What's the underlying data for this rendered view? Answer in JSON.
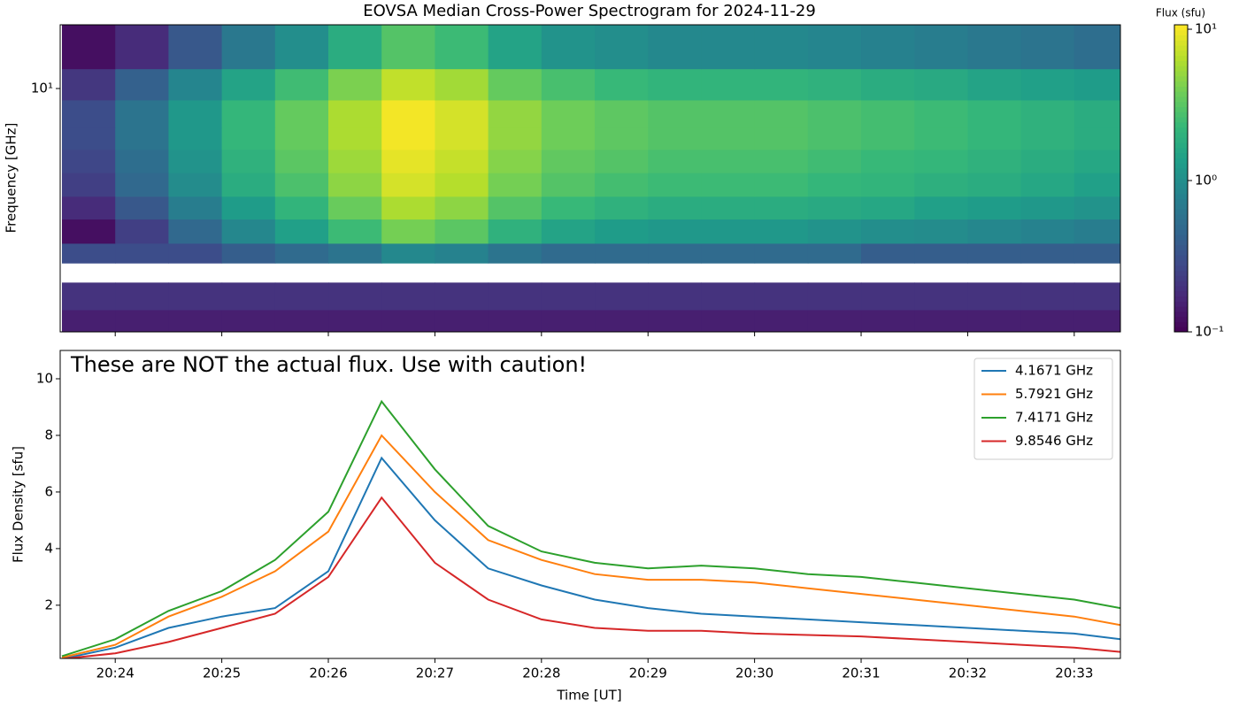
{
  "chart_data": [
    {
      "type": "heatmap",
      "title": "EOVSA Median Cross-Power Spectrogram for 2024-11-29",
      "ylabel": "Frequency [GHz]",
      "yscale": "log",
      "colormap": "viridis",
      "x": [
        "20:23:30",
        "20:24:00",
        "20:24:30",
        "20:25:00",
        "20:25:30",
        "20:26:00",
        "20:26:30",
        "20:27:00",
        "20:27:30",
        "20:28:00",
        "20:28:30",
        "20:29:00",
        "20:29:30",
        "20:30:00",
        "20:30:30",
        "20:31:00",
        "20:31:30",
        "20:32:00",
        "20:32:30",
        "20:33:00",
        "20:33:30"
      ],
      "y": [
        1.06,
        1.3,
        1.67,
        2.0,
        2.4,
        3.0,
        3.7,
        4.6,
        5.7,
        7.0,
        9.0,
        12,
        18
      ],
      "z": [
        [
          0.15,
          0.15,
          0.15,
          0.15,
          0.15,
          0.15,
          0.15,
          0.15,
          0.15,
          0.15,
          0.15,
          0.15,
          0.15,
          0.15,
          0.15,
          0.15,
          0.15,
          0.15,
          0.15,
          0.15
        ],
        [
          0.2,
          0.2,
          0.2,
          0.2,
          0.2,
          0.2,
          0.2,
          0.2,
          0.2,
          0.2,
          0.2,
          0.2,
          0.2,
          0.2,
          0.2,
          0.2,
          0.2,
          0.2,
          0.2,
          0.2
        ],
        [
          null,
          null,
          null,
          null,
          null,
          null,
          null,
          null,
          null,
          null,
          null,
          null,
          null,
          null,
          null,
          null,
          null,
          null,
          null,
          null
        ],
        [
          0.3,
          0.3,
          0.3,
          0.4,
          0.5,
          0.6,
          0.9,
          0.8,
          0.6,
          0.5,
          0.5,
          0.5,
          0.5,
          0.5,
          0.5,
          0.4,
          0.4,
          0.4,
          0.4,
          0.4
        ],
        [
          0.12,
          0.24,
          0.48,
          0.88,
          1.4,
          2.4,
          4,
          3.2,
          2,
          1.5,
          1.3,
          1.2,
          1.2,
          1.2,
          1.1,
          1.0,
          0.96,
          0.88,
          0.8,
          0.72
        ],
        [
          0.18,
          0.36,
          0.72,
          1.3,
          2.1,
          3.6,
          6,
          4.8,
          3,
          2.3,
          2,
          1.8,
          1.8,
          1.8,
          1.7,
          1.6,
          1.4,
          1.3,
          1.2,
          1.1
        ],
        [
          0.24,
          0.48,
          0.96,
          1.8,
          2.8,
          4.8,
          8,
          6.4,
          4,
          3,
          2.6,
          2.4,
          2.4,
          2.4,
          2.2,
          2.1,
          1.9,
          1.8,
          1.6,
          1.4
        ],
        [
          0.27,
          0.54,
          1.1,
          2,
          3.2,
          5.4,
          9,
          7.2,
          4.5,
          3.4,
          3,
          2.7,
          2.7,
          2.7,
          2.5,
          2.3,
          2.2,
          2,
          1.8,
          1.6
        ],
        [
          0.3,
          0.6,
          1.2,
          2.2,
          3.5,
          6,
          10,
          8,
          5,
          3.8,
          3.3,
          3,
          3,
          3,
          2.8,
          2.6,
          2.4,
          2.2,
          2,
          1.8
        ],
        [
          0.3,
          0.6,
          1.2,
          2.2,
          3.5,
          6,
          10,
          8,
          5,
          3.8,
          3.3,
          3,
          3,
          3,
          2.8,
          2.6,
          2.4,
          2.2,
          2,
          1.8
        ],
        [
          0.21,
          0.42,
          0.84,
          1.5,
          2.5,
          4.2,
          7,
          5.6,
          3.5,
          2.7,
          2.3,
          2.1,
          2.1,
          2.1,
          2,
          1.8,
          1.7,
          1.5,
          1.4,
          1.3
        ],
        [
          0.12,
          0.18,
          0.36,
          0.66,
          1,
          1.8,
          3,
          2.4,
          1.5,
          1.1,
          1,
          0.9,
          0.9,
          0.9,
          0.84,
          0.78,
          0.72,
          0.66,
          0.6,
          0.54
        ]
      ],
      "xlim": [
        "20:23:29",
        "20:33:26"
      ],
      "xticks": [
        "20:24",
        "20:25",
        "20:26",
        "20:27",
        "20:28",
        "20:29",
        "20:30",
        "20:31",
        "20:32",
        "20:33"
      ],
      "ylim": [
        1.06,
        18
      ],
      "yticks": [
        {
          "value": 10,
          "label": "10¹"
        }
      ],
      "colorbar": {
        "label": "Flux (sfu)",
        "scale": "log",
        "lim": [
          0.1,
          10.7
        ],
        "ticks": [
          {
            "value": 0.1,
            "label": "10⁻¹"
          },
          {
            "value": 1,
            "label": "10⁰"
          },
          {
            "value": 10,
            "label": "10¹"
          }
        ]
      }
    },
    {
      "type": "line",
      "annotation": "These are NOT the actual flux. Use with caution!",
      "xlabel": "Time [UT]",
      "ylabel": "Flux Density [sfu]",
      "x": [
        "20:23:30",
        "20:24:00",
        "20:24:30",
        "20:25:00",
        "20:25:30",
        "20:26:00",
        "20:26:30",
        "20:27:00",
        "20:27:30",
        "20:28:00",
        "20:28:30",
        "20:29:00",
        "20:29:30",
        "20:30:00",
        "20:30:30",
        "20:31:00",
        "20:31:30",
        "20:32:00",
        "20:32:30",
        "20:33:00",
        "20:33:26"
      ],
      "series": [
        {
          "name": "4.1671 GHz",
          "color": "#1f77b4",
          "values": [
            0.1,
            0.5,
            1.2,
            1.6,
            1.9,
            3.2,
            7.2,
            5.0,
            3.3,
            2.7,
            2.2,
            1.9,
            1.7,
            1.6,
            1.5,
            1.4,
            1.3,
            1.2,
            1.1,
            1.0,
            0.8
          ]
        },
        {
          "name": "5.7921 GHz",
          "color": "#ff7f0e",
          "values": [
            0.15,
            0.6,
            1.6,
            2.3,
            3.2,
            4.6,
            8.0,
            6.0,
            4.3,
            3.6,
            3.1,
            2.9,
            2.9,
            2.8,
            2.6,
            2.4,
            2.2,
            2.0,
            1.8,
            1.6,
            1.3
          ]
        },
        {
          "name": "7.4171 GHz",
          "color": "#2ca02c",
          "values": [
            0.2,
            0.8,
            1.8,
            2.5,
            3.6,
            5.3,
            9.2,
            6.8,
            4.8,
            3.9,
            3.5,
            3.3,
            3.4,
            3.3,
            3.1,
            3.0,
            2.8,
            2.6,
            2.4,
            2.2,
            1.9
          ]
        },
        {
          "name": "9.8546 GHz",
          "color": "#d62728",
          "values": [
            0.1,
            0.3,
            0.7,
            1.2,
            1.7,
            3.0,
            5.8,
            3.5,
            2.2,
            1.5,
            1.2,
            1.1,
            1.1,
            1.0,
            0.95,
            0.9,
            0.8,
            0.7,
            0.6,
            0.5,
            0.35
          ]
        }
      ],
      "xlim": [
        "20:23:29",
        "20:33:26"
      ],
      "xticks": [
        "20:24",
        "20:25",
        "20:26",
        "20:27",
        "20:28",
        "20:29",
        "20:30",
        "20:31",
        "20:32",
        "20:33"
      ],
      "ylim": [
        0.12,
        11
      ],
      "yticks": [
        2,
        4,
        6,
        8,
        10
      ],
      "legend": "upper right"
    }
  ]
}
